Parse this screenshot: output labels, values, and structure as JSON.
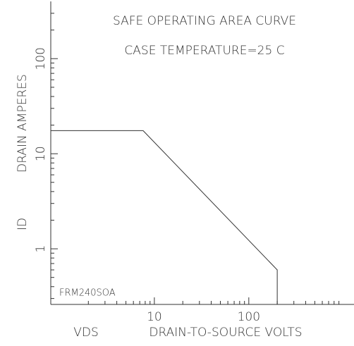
{
  "chart_data": {
    "type": "line",
    "title": "SAFE OPERATING AREA CURVE",
    "subtitle": "CASE TEMPERATURE=25 C",
    "x_label": "DRAIN-TO-SOURCE VOLTS",
    "x_symbol": "VDS",
    "y_label": "DRAIN AMPERES",
    "y_symbol": "ID",
    "annotation": "FRM240SOA",
    "x": [
      0.8,
      7.6,
      200,
      200
    ],
    "values": [
      17.5,
      17.5,
      0.6,
      0.26
    ],
    "color": "#333333",
    "xlog": true,
    "ylog": true,
    "xlim": [
      0.8,
      1300
    ],
    "ylim": [
      0.26,
      400
    ],
    "xticks": [
      10,
      100
    ],
    "yticks": [
      1,
      10,
      100
    ],
    "xminorticks": [
      2,
      3,
      4,
      5,
      6,
      7,
      8,
      9,
      20,
      30,
      40,
      50,
      60,
      70,
      80,
      90,
      200,
      300,
      400,
      500,
      600,
      700,
      800,
      900
    ],
    "yminorticks": [
      0.3,
      0.4,
      0.5,
      0.6,
      0.7,
      0.8,
      0.9,
      2,
      3,
      4,
      5,
      6,
      7,
      8,
      9,
      20,
      30,
      40,
      50,
      60,
      70,
      80,
      90,
      200,
      300
    ]
  }
}
